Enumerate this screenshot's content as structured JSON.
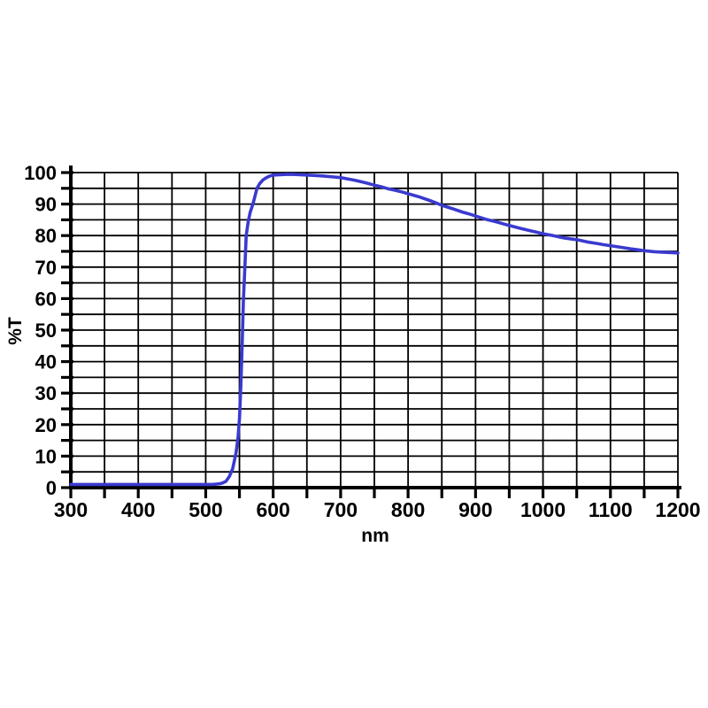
{
  "chart_data": {
    "type": "line",
    "title": "",
    "xlabel": "nm",
    "ylabel": "%T",
    "xlim": [
      300,
      1200
    ],
    "ylim": [
      0,
      100
    ],
    "x_tick_labels": [
      300,
      400,
      500,
      600,
      700,
      800,
      900,
      1000,
      1100,
      1200
    ],
    "x_minor_tick_step": 50,
    "y_tick_labels": [
      0,
      10,
      20,
      30,
      40,
      50,
      60,
      70,
      80,
      90,
      100
    ],
    "y_minor_tick_step": 5,
    "grid": {
      "on": true,
      "x_step": 50,
      "y_step": 5
    },
    "legend": "none",
    "colors": {
      "line": "#3a3ad0",
      "grid": "#000000",
      "axis": "#000000",
      "background": "#ffffff"
    },
    "series": [
      {
        "name": "transmission",
        "points": [
          [
            300,
            1
          ],
          [
            320,
            1
          ],
          [
            340,
            1
          ],
          [
            360,
            1
          ],
          [
            380,
            1
          ],
          [
            400,
            1
          ],
          [
            420,
            1
          ],
          [
            440,
            1
          ],
          [
            460,
            1
          ],
          [
            480,
            1
          ],
          [
            500,
            1
          ],
          [
            510,
            1
          ],
          [
            520,
            1.2
          ],
          [
            525,
            1.5
          ],
          [
            530,
            2
          ],
          [
            535,
            3.5
          ],
          [
            540,
            6
          ],
          [
            545,
            11
          ],
          [
            548,
            16
          ],
          [
            550,
            22
          ],
          [
            552,
            32
          ],
          [
            554,
            45
          ],
          [
            556,
            60
          ],
          [
            558,
            70
          ],
          [
            560,
            80
          ],
          [
            563,
            84.5
          ],
          [
            566,
            87.5
          ],
          [
            570,
            90
          ],
          [
            573,
            92.5
          ],
          [
            576,
            95
          ],
          [
            580,
            96.5
          ],
          [
            585,
            97.7
          ],
          [
            590,
            98.4
          ],
          [
            595,
            98.9
          ],
          [
            600,
            99.2
          ],
          [
            610,
            99.3
          ],
          [
            620,
            99.4
          ],
          [
            630,
            99.4
          ],
          [
            640,
            99.3
          ],
          [
            650,
            99.2
          ],
          [
            660,
            99.1
          ],
          [
            675,
            98.9
          ],
          [
            690,
            98.6
          ],
          [
            700,
            98.4
          ],
          [
            710,
            98
          ],
          [
            720,
            97.6
          ],
          [
            730,
            97.1
          ],
          [
            740,
            96.6
          ],
          [
            750,
            96
          ],
          [
            760,
            95.5
          ],
          [
            770,
            94.9
          ],
          [
            780,
            94.4
          ],
          [
            790,
            93.9
          ],
          [
            800,
            93.3
          ],
          [
            815,
            92.4
          ],
          [
            830,
            91.3
          ],
          [
            840,
            90.5
          ],
          [
            850,
            89.6
          ],
          [
            865,
            88.6
          ],
          [
            880,
            87.5
          ],
          [
            890,
            86.9
          ],
          [
            900,
            86.2
          ],
          [
            915,
            85.2
          ],
          [
            930,
            84.4
          ],
          [
            940,
            83.8
          ],
          [
            950,
            83.2
          ],
          [
            965,
            82.4
          ],
          [
            980,
            81.6
          ],
          [
            990,
            81.1
          ],
          [
            1000,
            80.6
          ],
          [
            1015,
            80
          ],
          [
            1030,
            79.3
          ],
          [
            1040,
            79
          ],
          [
            1050,
            78.7
          ],
          [
            1065,
            78
          ],
          [
            1080,
            77.5
          ],
          [
            1090,
            77.1
          ],
          [
            1100,
            76.8
          ],
          [
            1115,
            76.3
          ],
          [
            1130,
            75.8
          ],
          [
            1140,
            75.5
          ],
          [
            1150,
            75.2
          ],
          [
            1165,
            74.9
          ],
          [
            1180,
            74.7
          ],
          [
            1190,
            74.6
          ],
          [
            1200,
            74.5
          ]
        ]
      }
    ]
  }
}
